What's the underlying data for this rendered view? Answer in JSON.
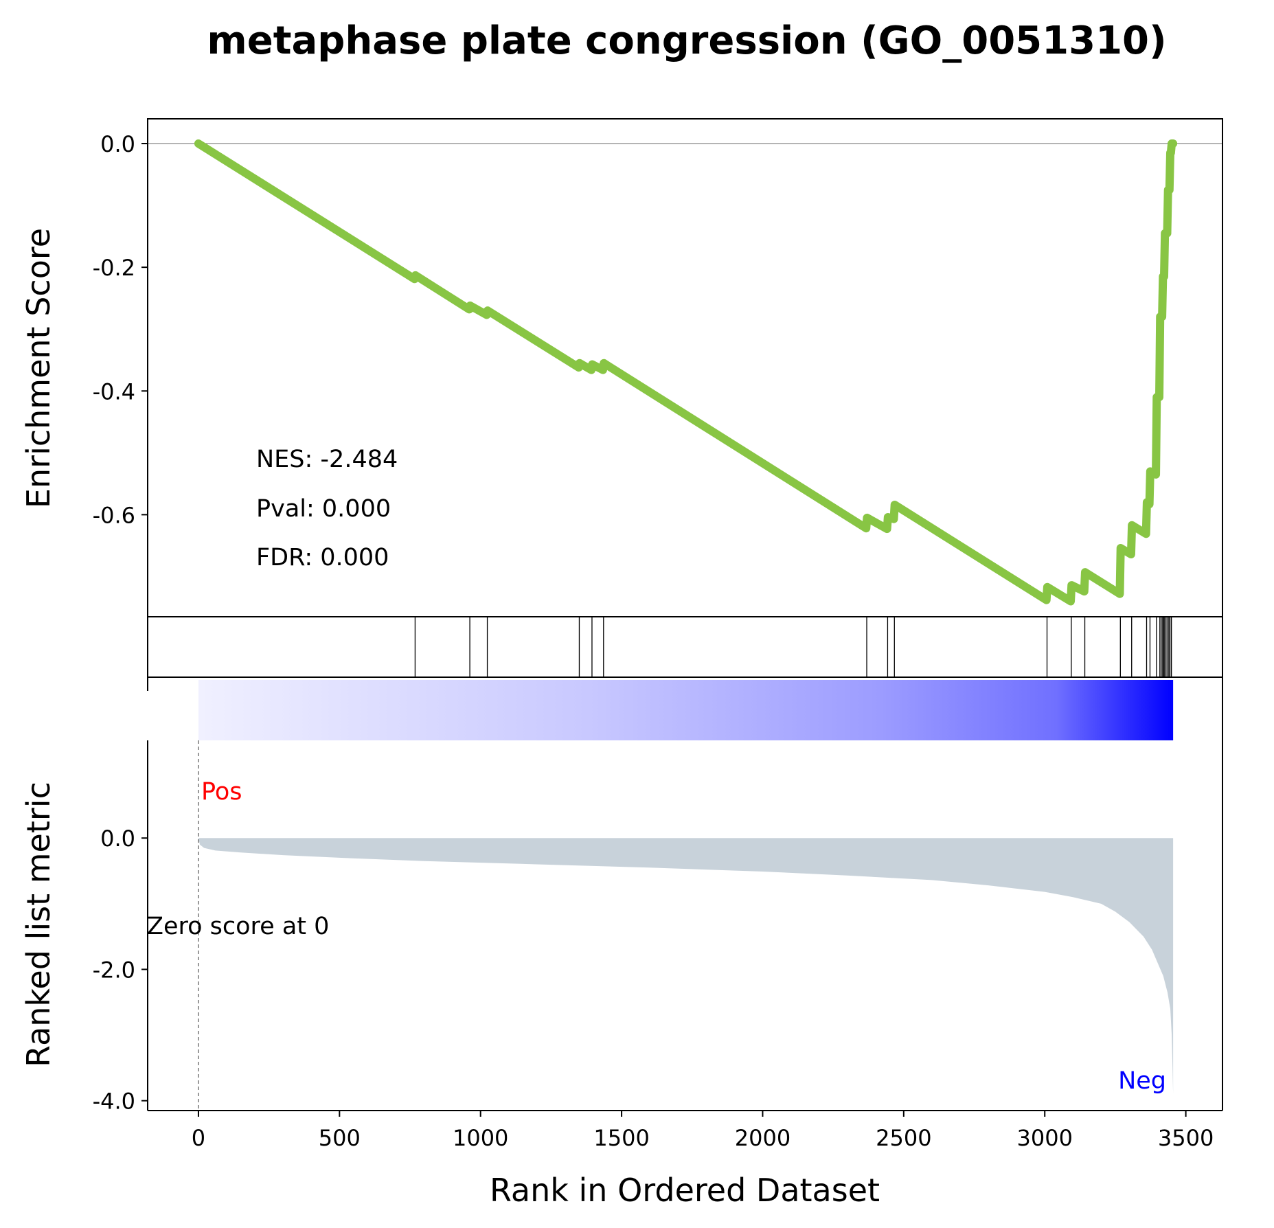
{
  "chart_data": {
    "type": "line",
    "title": "metaphase plate congression (GO_0051310)",
    "xlabel": "Rank in Ordered Dataset",
    "xlim": [
      -180,
      3630
    ],
    "x_ticks": [
      0,
      500,
      1000,
      1500,
      2000,
      2500,
      3000,
      3500
    ],
    "x_tick_labels": [
      "0",
      "500",
      "1000",
      "1500",
      "2000",
      "2500",
      "3000",
      "3500"
    ],
    "enrichment_panel": {
      "ylabel": "Enrichment Score",
      "ylim": [
        -0.765,
        0.04
      ],
      "y_ticks": [
        0.0,
        -0.2,
        -0.4,
        -0.6
      ],
      "y_tick_labels": [
        "0.0",
        "-0.2",
        "-0.4",
        "-0.6"
      ],
      "line_color": "#88c544",
      "zero_line": true,
      "stats": [
        "NES: -2.484",
        "Pval: 0.000",
        "FDR: 0.000"
      ],
      "running_es": {
        "x": [
          0,
          766,
          769,
          960,
          963,
          1022,
          1025,
          1348,
          1351,
          1393,
          1396,
          1434,
          1437,
          2367,
          2370,
          2441,
          2444,
          2465,
          2468,
          3006,
          3009,
          3092,
          3095,
          3140,
          3143,
          3266,
          3269,
          3306,
          3309,
          3359,
          3362,
          3371,
          3374,
          3394,
          3397,
          3406,
          3409,
          3416,
          3419,
          3423,
          3426,
          3434,
          3437,
          3442,
          3445,
          3447,
          3450,
          3455
        ],
        "y": [
          0.0,
          -0.219,
          -0.213,
          -0.268,
          -0.262,
          -0.277,
          -0.27,
          -0.362,
          -0.355,
          -0.366,
          -0.357,
          -0.366,
          -0.355,
          -0.622,
          -0.605,
          -0.623,
          -0.604,
          -0.607,
          -0.584,
          -0.738,
          -0.717,
          -0.74,
          -0.714,
          -0.724,
          -0.693,
          -0.728,
          -0.654,
          -0.664,
          -0.617,
          -0.631,
          -0.58,
          -0.583,
          -0.53,
          -0.535,
          -0.41,
          -0.41,
          -0.28,
          -0.28,
          -0.215,
          -0.215,
          -0.145,
          -0.145,
          -0.075,
          -0.075,
          -0.015,
          -0.015,
          0.0,
          0.0
        ]
      }
    },
    "hits_panel": {
      "ranks": [
        768,
        962,
        1024,
        1350,
        1395,
        1436,
        2369,
        2443,
        2467,
        3008,
        3094,
        3142,
        3268,
        3308,
        3361,
        3373,
        3396,
        3408,
        3413,
        3418,
        3421,
        3425,
        3430,
        3436,
        3440,
        3444,
        3449
      ]
    },
    "metric_panel": {
      "ylabel": "Ranked list metric",
      "ylim": [
        -4.15,
        2.45
      ],
      "y_ticks": [
        0.0,
        -2.0,
        -4.0
      ],
      "y_tick_labels": [
        "0.0",
        "-2.0",
        "-4.0"
      ],
      "fill_color": "#c8d2da",
      "heatmap_colors": [
        "#f0f0ff",
        "#0000ff"
      ],
      "zero_marker_rank": 0,
      "zero_marker_label": "Zero score at 0",
      "pos_label": "Pos",
      "pos_color": "#ff0000",
      "neg_label": "Neg",
      "neg_color": "#0000ff",
      "metric_curve": {
        "x": [
          0,
          5,
          20,
          60,
          150,
          300,
          500,
          800,
          1200,
          1600,
          2000,
          2300,
          2600,
          2800,
          3000,
          3100,
          3200,
          3250,
          3300,
          3350,
          3380,
          3400,
          3420,
          3435,
          3445,
          3450,
          3453,
          3455
        ],
        "y": [
          0.0,
          -0.1,
          -0.15,
          -0.19,
          -0.22,
          -0.26,
          -0.3,
          -0.35,
          -0.4,
          -0.45,
          -0.51,
          -0.57,
          -0.64,
          -0.72,
          -0.82,
          -0.9,
          -1.0,
          -1.12,
          -1.28,
          -1.5,
          -1.7,
          -1.9,
          -2.1,
          -2.35,
          -2.6,
          -3.0,
          -3.5,
          -3.9
        ]
      }
    }
  }
}
